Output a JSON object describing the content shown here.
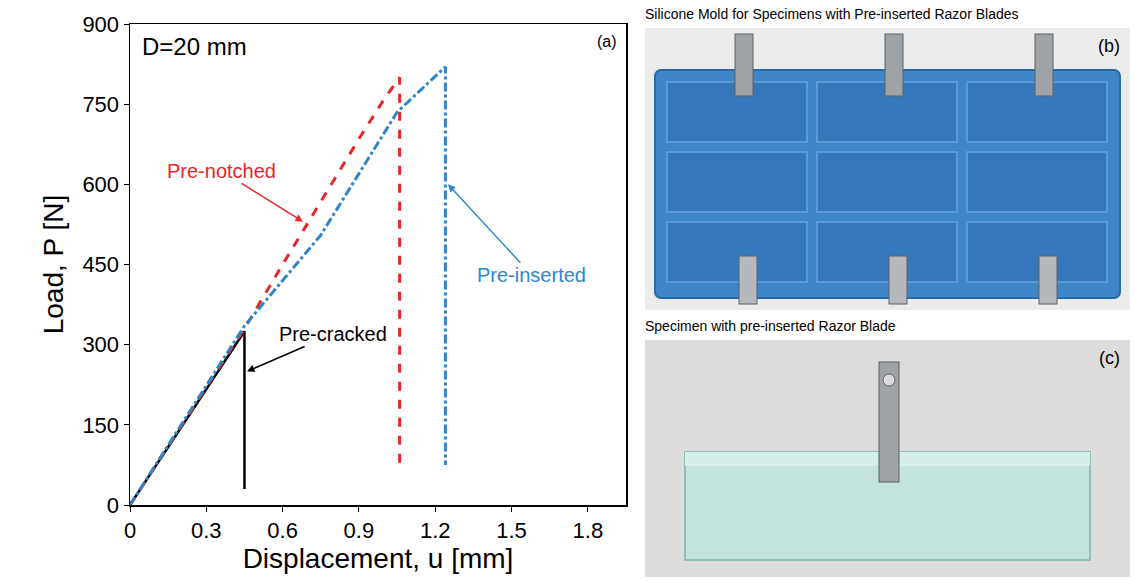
{
  "chart_data": {
    "type": "line",
    "x_label": "Displacement, u [mm]",
    "y_label": "Load, P [N]",
    "annotations": [
      "D=20 mm",
      "(a)"
    ],
    "xlim": [
      0,
      1.95
    ],
    "xticks": [
      0,
      0.3,
      0.6,
      0.9,
      1.2,
      1.5,
      1.8
    ],
    "ylim": [
      0,
      900
    ],
    "yticks": [
      0,
      150,
      300,
      450,
      600,
      750,
      900
    ],
    "grid": false,
    "series": [
      {
        "name": "Pre-cracked",
        "color": "#000000",
        "line_style": "solid",
        "x": [
          0,
          0.2,
          0.45,
          0.45
        ],
        "values": [
          0,
          145,
          325,
          30
        ]
      },
      {
        "name": "Pre-notched",
        "color": "#e8262a",
        "line_style": "dashed",
        "x": [
          0,
          0.45,
          0.6,
          0.9,
          1.0,
          1.06,
          1.06
        ],
        "values": [
          0,
          330,
          450,
          685,
          760,
          800,
          75
        ]
      },
      {
        "name": "Pre-inserted",
        "color": "#2e86c8",
        "line_style": "dashdot",
        "x": [
          0,
          0.45,
          0.75,
          1.05,
          1.24,
          1.24
        ],
        "values": [
          0,
          335,
          505,
          735,
          820,
          75
        ]
      }
    ]
  },
  "panels": [
    {
      "letter": "(b)",
      "title": "Silicone Mold for Specimens with Pre-inserted Razor Blades"
    },
    {
      "letter": "(c)",
      "title": "Specimen with pre-inserted Razor Blade"
    }
  ]
}
